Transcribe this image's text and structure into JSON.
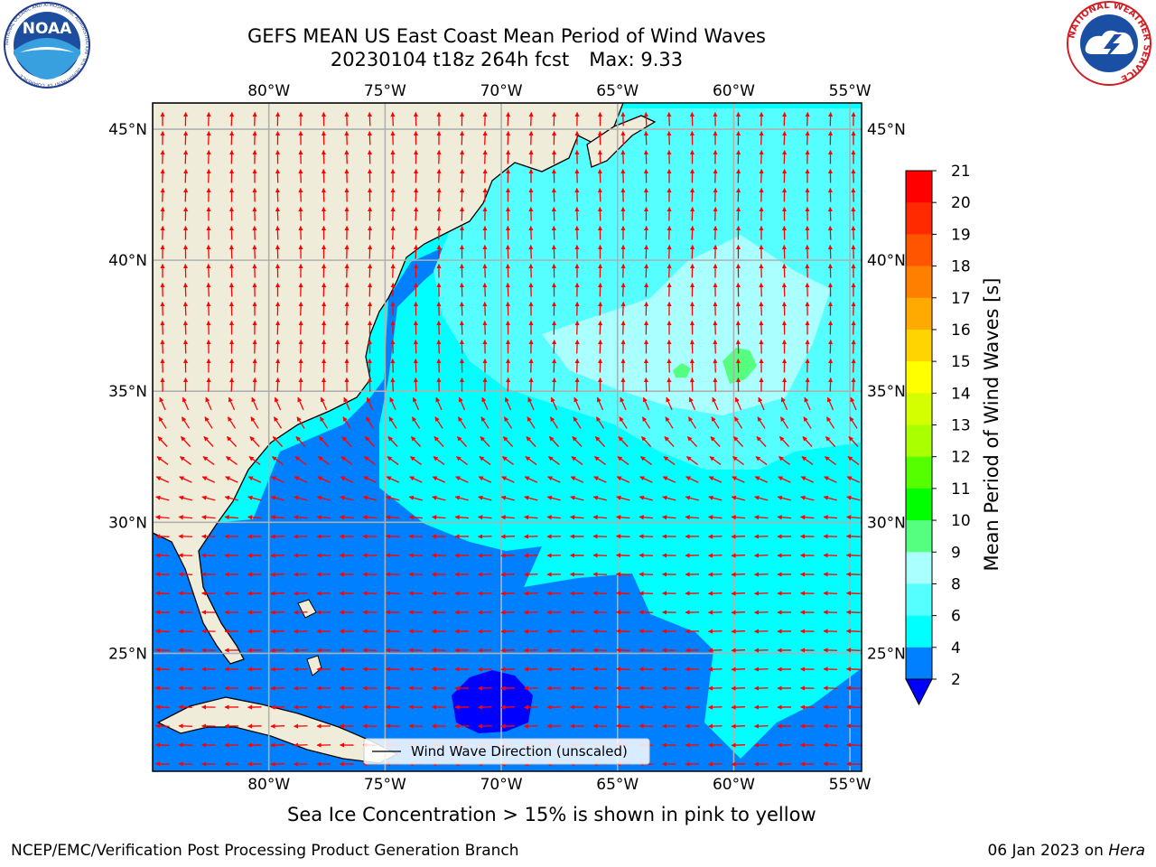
{
  "header": {
    "title_line1": "GEFS MEAN US East Coast Mean Period of Wind Waves",
    "title_run": "20230104 t18z 264h fcst",
    "title_max": "Max: 9.33"
  },
  "logos": {
    "noaa": {
      "text": "NOAA",
      "ring_text": "NATIONAL OCEANIC AND ATMOSPHERIC ADMINISTRATION · U.S. DEPARTMENT OF COMMERCE"
    },
    "nws": {
      "ring_text": "NATIONAL WEATHER SERVICE"
    }
  },
  "map": {
    "lon_ticks": [
      "80°W",
      "75°W",
      "70°W",
      "65°W",
      "60°W",
      "55°W"
    ],
    "lat_ticks": [
      "45°N",
      "40°N",
      "35°N",
      "30°N",
      "25°N"
    ],
    "legend_label": "Wind Wave Direction (unscaled)",
    "colors": {
      "land": "#efedda",
      "coast": "#000000",
      "grid": "#b0b0b0",
      "arrow": "#ff0000"
    }
  },
  "colorbar": {
    "title": "Mean Period of Wind Waves [s]",
    "ticks": [
      "21",
      "20",
      "19",
      "18",
      "17",
      "16",
      "15",
      "14",
      "13",
      "12",
      "11",
      "10",
      "9",
      "8",
      "6",
      "4",
      "2"
    ],
    "colors_top_to_bottom": [
      "#ff0000",
      "#ff2a00",
      "#ff5500",
      "#ff8000",
      "#ffaa00",
      "#ffd400",
      "#ffff00",
      "#d4ff00",
      "#aaff00",
      "#55ff00",
      "#00ff00",
      "#55ff80",
      "#aaffff",
      "#55ffff",
      "#00ffff",
      "#0080ff",
      "#0000ff"
    ]
  },
  "chart_data": {
    "type": "heatmap",
    "title": "GEFS MEAN US East Coast Mean Period of Wind Waves",
    "variable": "Mean Period of Wind Waves [s]",
    "run": "20230104 t18z",
    "forecast_hour": "264h",
    "max_value": 9.33,
    "extent": {
      "lon": [
        -85,
        -54.5
      ],
      "lat": [
        20.5,
        46
      ]
    },
    "color_levels": [
      2,
      4,
      6,
      8,
      9,
      10,
      11,
      12,
      13,
      14,
      15,
      16,
      17,
      18,
      19,
      20,
      21
    ],
    "colorbar_extend": "min",
    "grid": true,
    "legend_placement": "bottom-center"
  },
  "notes": {
    "sea_ice": "Sea Ice Concentration > 15% is shown in pink to yellow"
  },
  "footer": {
    "left": "NCEP/EMC/Verification Post Processing Product Generation Branch",
    "date": "06 Jan 2023 on",
    "machine": "Hera"
  }
}
